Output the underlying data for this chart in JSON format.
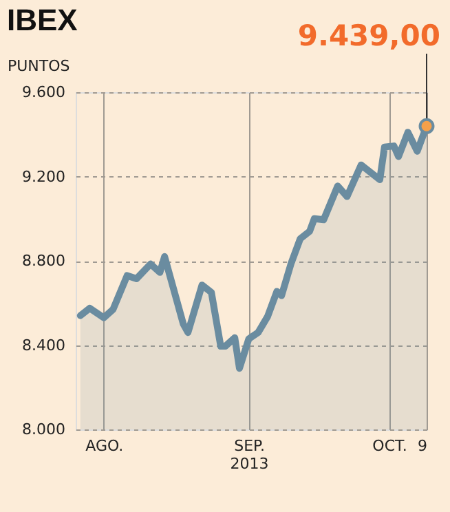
{
  "chart_data": {
    "type": "area",
    "title": "IBEX",
    "ylabel": "PUNTOS",
    "x": [
      "2013-07-27",
      "2013-07-29",
      "2013-08-01",
      "2013-08-03",
      "2013-08-06",
      "2013-08-08",
      "2013-08-11",
      "2013-08-13",
      "2013-08-14",
      "2013-08-18",
      "2013-08-19",
      "2013-08-22",
      "2013-08-24",
      "2013-08-26",
      "2013-08-27",
      "2013-08-29",
      "2013-08-30",
      "2013-09-01",
      "2013-09-03",
      "2013-09-05",
      "2013-09-07",
      "2013-09-08",
      "2013-09-10",
      "2013-09-12",
      "2013-09-14",
      "2013-09-15",
      "2013-09-17",
      "2013-09-20",
      "2013-09-22",
      "2013-09-25",
      "2013-09-29",
      "2013-09-30",
      "2013-10-02",
      "2013-10-03",
      "2013-10-05",
      "2013-10-07",
      "2013-10-09"
    ],
    "series": [
      {
        "color": "#6a8ca0",
        "values": [
          8540,
          8575,
          8530,
          8570,
          8730,
          8715,
          8785,
          8745,
          8820,
          8500,
          8460,
          8685,
          8650,
          8395,
          8395,
          8435,
          8290,
          8430,
          8460,
          8535,
          8655,
          8635,
          8785,
          8905,
          8940,
          9000,
          8995,
          9155,
          9105,
          9255,
          9185,
          9340,
          9345,
          9295,
          9410,
          9320,
          9439
        ]
      }
    ],
    "xlim": [
      "2013-07-26",
      "2013-10-09"
    ],
    "xticks": [
      {
        "value": "2013-08-01",
        "label": "AGO."
      },
      {
        "value": "2013-09-01",
        "label": "SEP.\n2013"
      },
      {
        "value": "2013-10-01",
        "label": "OCT."
      },
      {
        "value": "2013-10-09",
        "label": "9"
      }
    ],
    "ylim": [
      8000,
      9600
    ],
    "yticks": [
      {
        "value": 8000,
        "label": "8.000"
      },
      {
        "value": 8400,
        "label": "8.400"
      },
      {
        "value": 8800,
        "label": "8.800"
      },
      {
        "value": 9200,
        "label": "9.200"
      },
      {
        "value": 9600,
        "label": "9.600"
      }
    ],
    "grid": true,
    "annotations": [
      {
        "text": "9.439,00",
        "x": "2013-10-09",
        "y": 9439
      }
    ]
  }
}
